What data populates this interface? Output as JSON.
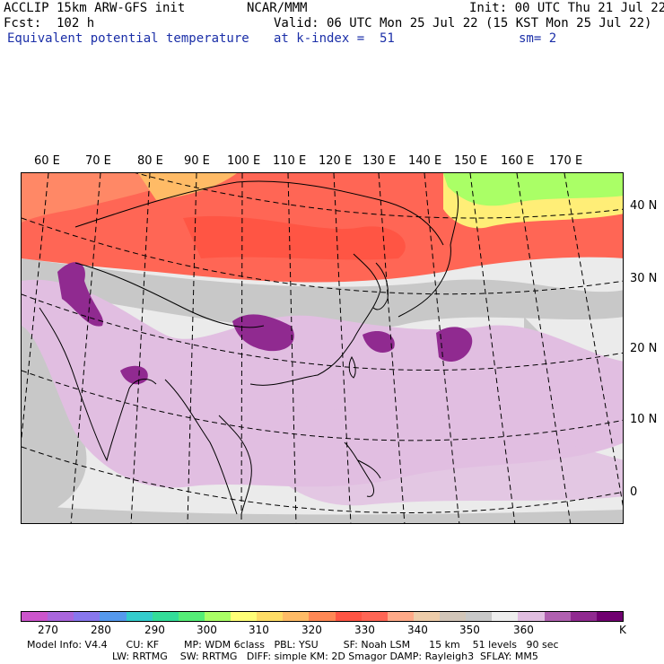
{
  "header": {
    "line1_left": "ACCLIP 15km ARW-GFS init",
    "line1_center": "NCAR/MMM",
    "line1_right": "Init: 00 UTC Thu 21 Jul 22",
    "line2_left": "Fcst:  102 h",
    "line2_right": "Valid: 06 UTC Mon 25 Jul 22 (15 KST Mon 25 Jul 22)",
    "line3_left": "Equivalent potential temperature",
    "line3_center": "at k-index =  51",
    "line3_right": "sm= 2"
  },
  "map": {
    "lon_labels": [
      "60 E",
      "70 E",
      "80 E",
      "90 E",
      "100 E",
      "110 E",
      "120 E",
      "130 E",
      "140 E",
      "150 E",
      "160 E",
      "170 E"
    ],
    "lat_labels": [
      "40 N",
      "30 N",
      "20 N",
      "10 N",
      "0"
    ]
  },
  "colorbar": {
    "colors": [
      "#cc55cc",
      "#aa66dd",
      "#8877ee",
      "#5599ee",
      "#33cccc",
      "#33dd99",
      "#55ee77",
      "#aaff66",
      "#ffff77",
      "#ffdd66",
      "#ffbb66",
      "#ff8855",
      "#ff5544",
      "#ff6655",
      "#ffaa88",
      "#eecdaa",
      "#d2c6b9",
      "#c8c8c8",
      "#eeeeee",
      "#e1bee1",
      "#b060b0",
      "#902a90",
      "#700070"
    ],
    "ticks": [
      "270",
      "280",
      "290",
      "300",
      "310",
      "320",
      "330",
      "340",
      "350",
      "360",
      "K"
    ]
  },
  "footer": {
    "line1": "Model Info: V4.4      CU: KF        MP: WDM 6class   PBL: YSU        SF: Noah LSM      15 km    51 levels   90 sec",
    "line2": "LW: RRTMG    SW: RRTMG   DIFF: simple KM: 2D Smagor DAMP: Rayleigh3  SFLAY: MM5"
  }
}
